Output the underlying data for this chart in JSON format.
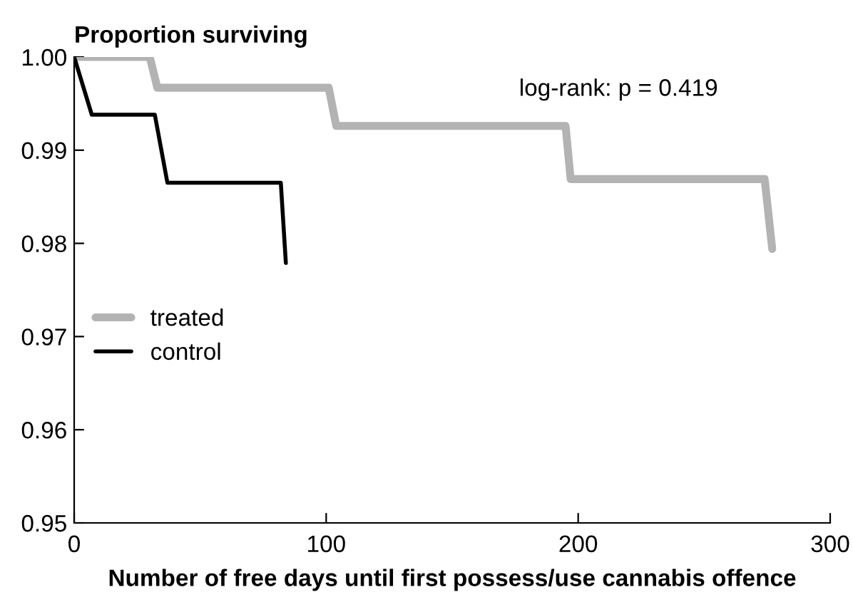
{
  "chart_data": {
    "type": "line",
    "ylabel": "Proportion surviving",
    "xlabel": "Number of free days until first possess/use cannabis offence",
    "series": [
      {
        "name": "treated",
        "color": "#b3b3b3",
        "x": [
          0,
          30,
          33,
          101,
          104,
          195,
          197,
          274,
          277
        ],
        "values": [
          1.0,
          1.0,
          0.9967,
          0.9967,
          0.9926,
          0.9926,
          0.9869,
          0.9869,
          0.9794
        ]
      },
      {
        "name": "control",
        "color": "#000000",
        "x": [
          0,
          7,
          32,
          37,
          82,
          84
        ],
        "values": [
          1.0,
          0.9938,
          0.9938,
          0.9865,
          0.9865,
          0.9779
        ]
      }
    ],
    "xlim": [
      0,
      300
    ],
    "xticks": [
      0,
      100,
      200,
      300
    ],
    "ylim": [
      0.95,
      1.0
    ],
    "yticks": [
      {
        "value": 0.95,
        "label": "0.95"
      },
      {
        "value": 0.96,
        "label": "0.96"
      },
      {
        "value": 0.97,
        "label": "0.97"
      },
      {
        "value": 0.98,
        "label": "0.98"
      },
      {
        "value": 0.99,
        "label": "0.99"
      },
      {
        "value": 1.0,
        "label": "1.00"
      }
    ],
    "annotations": [
      "log-rank: p = 0.419"
    ],
    "legend": "center left",
    "grid": false,
    "marker": "none",
    "line_style": "solid"
  }
}
